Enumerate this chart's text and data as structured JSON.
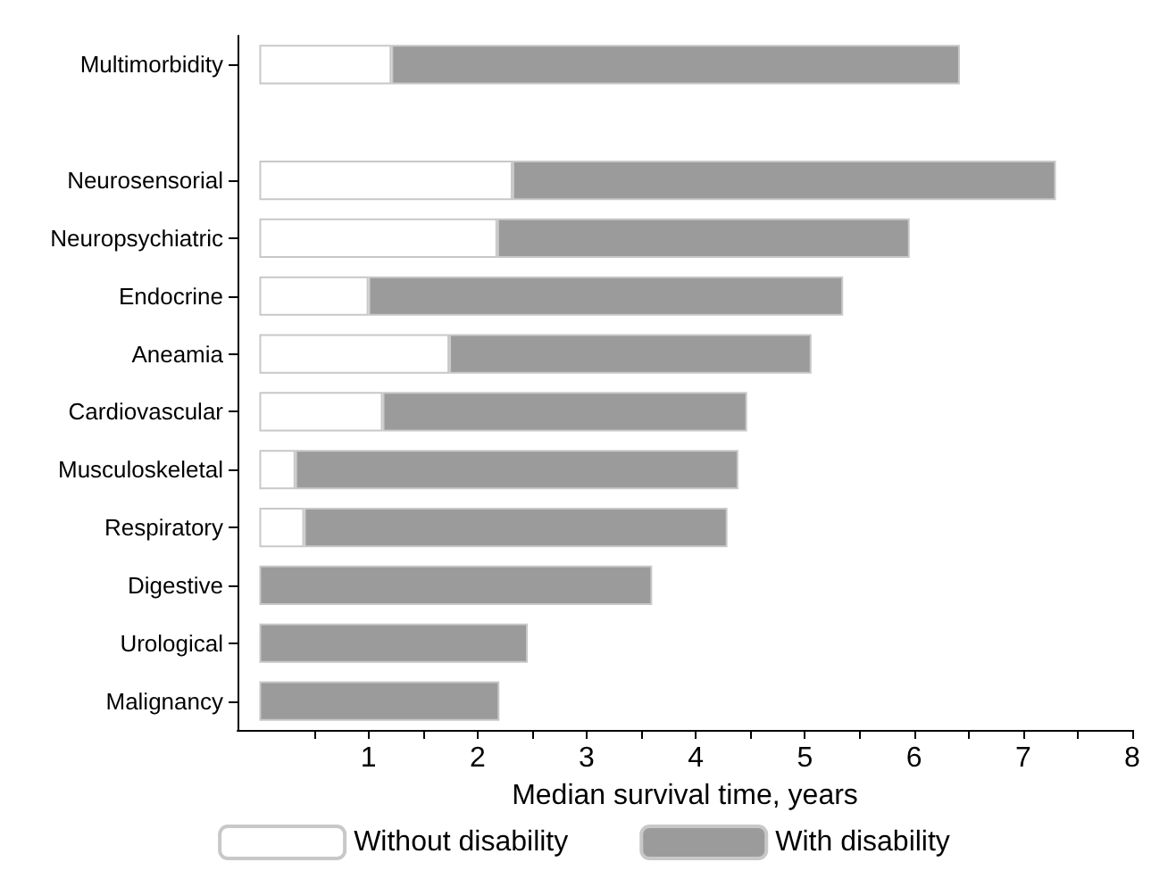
{
  "chart_data": {
    "type": "bar",
    "orientation": "horizontal",
    "stacked": true,
    "xlabel": "Median survival time, years",
    "categories": [
      "Multimorbidity",
      null,
      "Neurosensorial",
      "Neuropsychiatric",
      "Endocrine",
      "Aneamia",
      "Cardiovascular",
      "Musculoskeletal",
      "Respiratory",
      "Digestive",
      "Urological",
      "Malignancy"
    ],
    "series": [
      {
        "name": "Without disability",
        "color": "#ffffff",
        "values": [
          1.21,
          null,
          2.32,
          2.18,
          1.0,
          1.74,
          1.13,
          0.33,
          0.41,
          0,
          0,
          0
        ]
      },
      {
        "name": "With disability",
        "color": "#9b9b9b",
        "values": [
          5.21,
          null,
          4.98,
          3.78,
          4.35,
          3.32,
          3.34,
          4.06,
          3.88,
          3.6,
          2.46,
          2.2
        ]
      }
    ],
    "xlim": [
      -0.2,
      8
    ],
    "xticks": [
      {
        "value": 0.5,
        "label": null
      },
      1,
      {
        "value": 1.5,
        "label": null
      },
      2,
      {
        "value": 2.5,
        "label": null
      },
      3,
      {
        "value": 3.5,
        "label": null
      },
      4,
      {
        "value": 4.5,
        "label": null
      },
      5,
      {
        "value": 5.5,
        "label": null
      },
      6,
      {
        "value": 6.5,
        "label": null
      },
      7,
      {
        "value": 7.5,
        "label": null
      },
      8
    ],
    "grid": false,
    "legend": "bottom"
  }
}
